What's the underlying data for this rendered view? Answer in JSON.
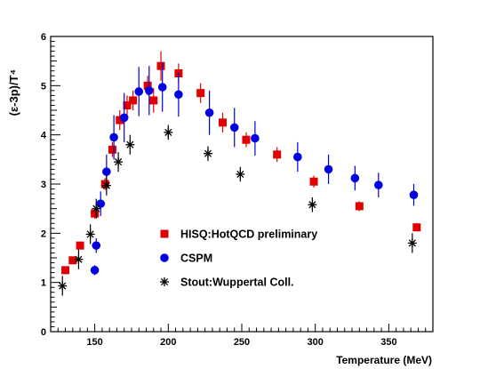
{
  "chart_data": {
    "type": "scatter",
    "xlabel": "Temperature (MeV)",
    "ylabel": "(ε-3p)/T⁴",
    "xlim": [
      120,
      380
    ],
    "ylim": [
      0,
      6
    ],
    "x_ticks": [
      150,
      200,
      250,
      300,
      350
    ],
    "y_ticks": [
      0,
      1,
      2,
      3,
      4,
      5,
      6
    ],
    "grid": false,
    "legend_position": "center",
    "series": [
      {
        "name": "HISQ:HotQCD preliminary",
        "marker": "square",
        "color": "#e00000",
        "points": [
          {
            "x": 130,
            "y": 1.25,
            "err": 0.08
          },
          {
            "x": 135,
            "y": 1.45,
            "err": 0.07
          },
          {
            "x": 140,
            "y": 1.75,
            "err": 0.08
          },
          {
            "x": 150,
            "y": 2.4,
            "err": 0.1
          },
          {
            "x": 157,
            "y": 3.0,
            "err": 0.12
          },
          {
            "x": 162,
            "y": 3.7,
            "err": 0.15
          },
          {
            "x": 167,
            "y": 4.3,
            "err": 0.2
          },
          {
            "x": 172,
            "y": 4.6,
            "err": 0.2
          },
          {
            "x": 176,
            "y": 4.7,
            "err": 0.2
          },
          {
            "x": 186,
            "y": 5.0,
            "err": 0.2
          },
          {
            "x": 190,
            "y": 4.7,
            "err": 0.25
          },
          {
            "x": 195,
            "y": 5.4,
            "err": 0.3
          },
          {
            "x": 207,
            "y": 5.25,
            "err": 0.2
          },
          {
            "x": 222,
            "y": 4.85,
            "err": 0.2
          },
          {
            "x": 237,
            "y": 4.25,
            "err": 0.2
          },
          {
            "x": 253,
            "y": 3.9,
            "err": 0.15
          },
          {
            "x": 274,
            "y": 3.6,
            "err": 0.15
          },
          {
            "x": 299,
            "y": 3.05,
            "err": 0.12
          },
          {
            "x": 330,
            "y": 2.55,
            "err": 0.1
          },
          {
            "x": 369,
            "y": 2.12,
            "err": 0.08
          }
        ]
      },
      {
        "name": "CSPM",
        "marker": "circle",
        "color": "#0000e0",
        "points": [
          {
            "x": 150,
            "y": 1.25,
            "err": 0.1
          },
          {
            "x": 151,
            "y": 1.75,
            "err": 0.15
          },
          {
            "x": 154,
            "y": 2.6,
            "err": 0.25
          },
          {
            "x": 158,
            "y": 3.25,
            "err": 0.35
          },
          {
            "x": 163,
            "y": 3.95,
            "err": 0.45
          },
          {
            "x": 170,
            "y": 4.35,
            "err": 0.5
          },
          {
            "x": 180,
            "y": 4.88,
            "err": 0.5
          },
          {
            "x": 187,
            "y": 4.9,
            "err": 0.5
          },
          {
            "x": 196,
            "y": 4.97,
            "err": 0.5
          },
          {
            "x": 207,
            "y": 4.82,
            "err": 0.45
          },
          {
            "x": 228,
            "y": 4.45,
            "err": 0.45
          },
          {
            "x": 245,
            "y": 4.15,
            "err": 0.4
          },
          {
            "x": 259,
            "y": 3.93,
            "err": 0.35
          },
          {
            "x": 288,
            "y": 3.55,
            "err": 0.3
          },
          {
            "x": 309,
            "y": 3.3,
            "err": 0.3
          },
          {
            "x": 327,
            "y": 3.12,
            "err": 0.25
          },
          {
            "x": 343,
            "y": 2.98,
            "err": 0.25
          },
          {
            "x": 367,
            "y": 2.78,
            "err": 0.22
          }
        ]
      },
      {
        "name": "Stout:Wuppertal Coll.",
        "marker": "asterisk",
        "color": "#000000",
        "points": [
          {
            "x": 128,
            "y": 0.93,
            "err": 0.2
          },
          {
            "x": 139,
            "y": 1.47,
            "err": 0.2
          },
          {
            "x": 147,
            "y": 1.98,
            "err": 0.2
          },
          {
            "x": 151,
            "y": 2.5,
            "err": 0.2
          },
          {
            "x": 158,
            "y": 2.97,
            "err": 0.2
          },
          {
            "x": 166,
            "y": 3.45,
            "err": 0.2
          },
          {
            "x": 174,
            "y": 3.8,
            "err": 0.2
          },
          {
            "x": 200,
            "y": 4.05,
            "err": 0.15
          },
          {
            "x": 227,
            "y": 3.62,
            "err": 0.15
          },
          {
            "x": 249,
            "y": 3.2,
            "err": 0.15
          },
          {
            "x": 298,
            "y": 2.58,
            "err": 0.15
          },
          {
            "x": 366,
            "y": 1.8,
            "err": 0.2
          }
        ]
      }
    ]
  }
}
